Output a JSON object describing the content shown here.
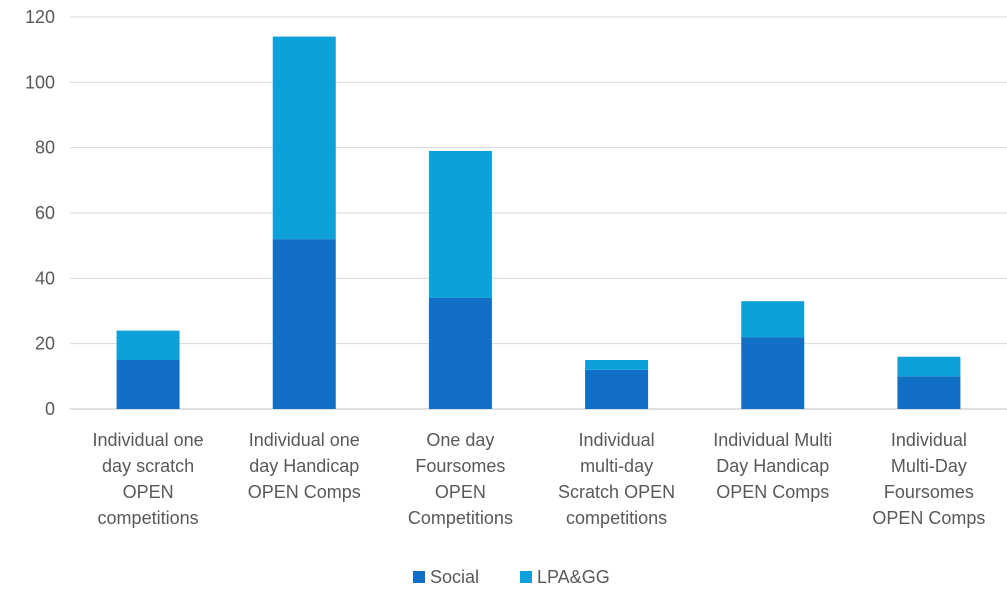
{
  "chart_data": {
    "type": "bar",
    "stacked": true,
    "title": "",
    "xlabel": "",
    "ylabel": "",
    "ylim": [
      0,
      120
    ],
    "yticks": [
      0,
      20,
      40,
      60,
      80,
      100,
      120
    ],
    "grid": true,
    "legend_position": "bottom",
    "categories": [
      [
        "Individual  one",
        "day scratch",
        "OPEN",
        "competitions"
      ],
      [
        "Individual one",
        "day Handicap",
        "OPEN Comps"
      ],
      [
        "One day",
        "Foursomes",
        "OPEN",
        "Competitions"
      ],
      [
        "Individual",
        "multi-day",
        "Scratch OPEN",
        "competitions"
      ],
      [
        "Individual Multi",
        "Day Handicap",
        "OPEN Comps"
      ],
      [
        "Individual",
        "Multi-Day",
        "Foursomes",
        "OPEN Comps"
      ]
    ],
    "series": [
      {
        "name": "Social",
        "color": "#1170C6",
        "values": [
          15,
          52,
          34,
          12,
          22,
          10
        ]
      },
      {
        "name": "LPA&GG",
        "color": "#0EA1D9",
        "values": [
          9,
          62,
          45,
          3,
          11,
          6
        ]
      }
    ]
  }
}
